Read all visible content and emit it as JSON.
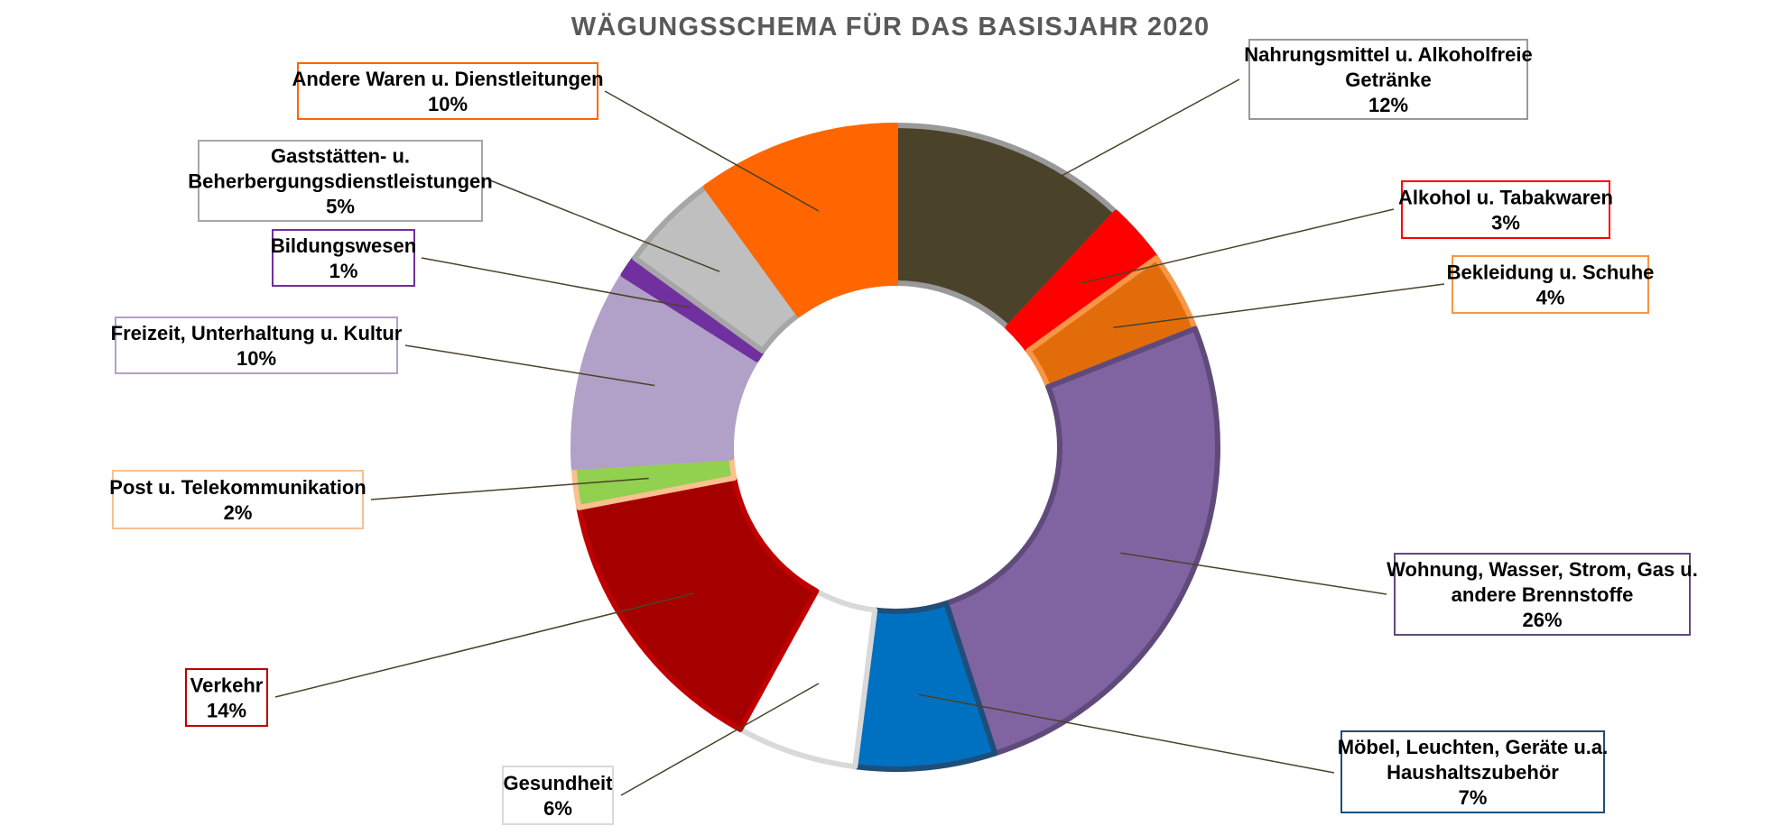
{
  "chart_data": {
    "type": "pie",
    "title": "WÄGUNGSSCHEMA FÜR DAS BASISJAHR 2020",
    "slices": [
      {
        "label": "Nahrungsmittel u. Alkoholfreie Getränke",
        "lines": [
          "Nahrungsmittel u. Alkoholfreie",
          "Getränke"
        ],
        "value": 12,
        "display": "12%",
        "color": "#4a4229",
        "border": "#999999"
      },
      {
        "label": "Alkohol u. Tabakwaren",
        "lines": [
          "Alkohol u. Tabakwaren"
        ],
        "value": 3,
        "display": "3%",
        "color": "#ff0000",
        "border": "#ff0000"
      },
      {
        "label": "Bekleidung u. Schuhe",
        "lines": [
          "Bekleidung u. Schuhe"
        ],
        "value": 4,
        "display": "4%",
        "color": "#e36c0a",
        "border": "#f79646"
      },
      {
        "label": "Wohnung, Wasser, Strom, Gas u. andere Brennstoffe",
        "lines": [
          "Wohnung, Wasser, Strom, Gas u.",
          "andere Brennstoffe"
        ],
        "value": 26,
        "display": "26%",
        "color": "#8064a2",
        "border": "#604a7b"
      },
      {
        "label": "Möbel, Leuchten, Geräte u.a. Haushaltszubehör",
        "lines": [
          "Möbel, Leuchten, Geräte u.a.",
          "Haushaltszubehör"
        ],
        "value": 7,
        "display": "7%",
        "color": "#0070c0",
        "border": "#1f4e79"
      },
      {
        "label": "Gesundheit",
        "lines": [
          "Gesundheit"
        ],
        "value": 6,
        "display": "6%",
        "color": "#ffffff",
        "border": "#d9d9d9"
      },
      {
        "label": "Verkehr",
        "lines": [
          "Verkehr"
        ],
        "value": 14,
        "display": "14%",
        "color": "#a50000",
        "border": "#c00000"
      },
      {
        "label": "Post u. Telekommunikation",
        "lines": [
          "Post u. Telekommunikation"
        ],
        "value": 2,
        "display": "2%",
        "color": "#92d050",
        "border": "#fac090"
      },
      {
        "label": "Freizeit, Unterhaltung u. Kultur",
        "lines": [
          "Freizeit, Unterhaltung u. Kultur"
        ],
        "value": 10,
        "display": "10%",
        "color": "#b1a0c7",
        "border": "#b1a0c7"
      },
      {
        "label": "Bildungswesen",
        "lines": [
          "Bildungswesen"
        ],
        "value": 1,
        "display": "1%",
        "color": "#7030a0",
        "border": "#7030a0"
      },
      {
        "label": "Gaststätten- u. Beherbergungsdienstleistungen",
        "lines": [
          "Gaststätten- u.",
          "Beherbergungsdienstleistungen"
        ],
        "value": 5,
        "display": "5%",
        "color": "#bfbfbf",
        "border": "#a6a6a6"
      },
      {
        "label": "Andere Waren u. Dienstleitungen",
        "lines": [
          "Andere Waren u. Dienstleitungen"
        ],
        "value": 10,
        "display": "10%",
        "color": "#ff6600",
        "border": "#ff6600"
      }
    ],
    "leader_line_color": "#4a4229"
  }
}
